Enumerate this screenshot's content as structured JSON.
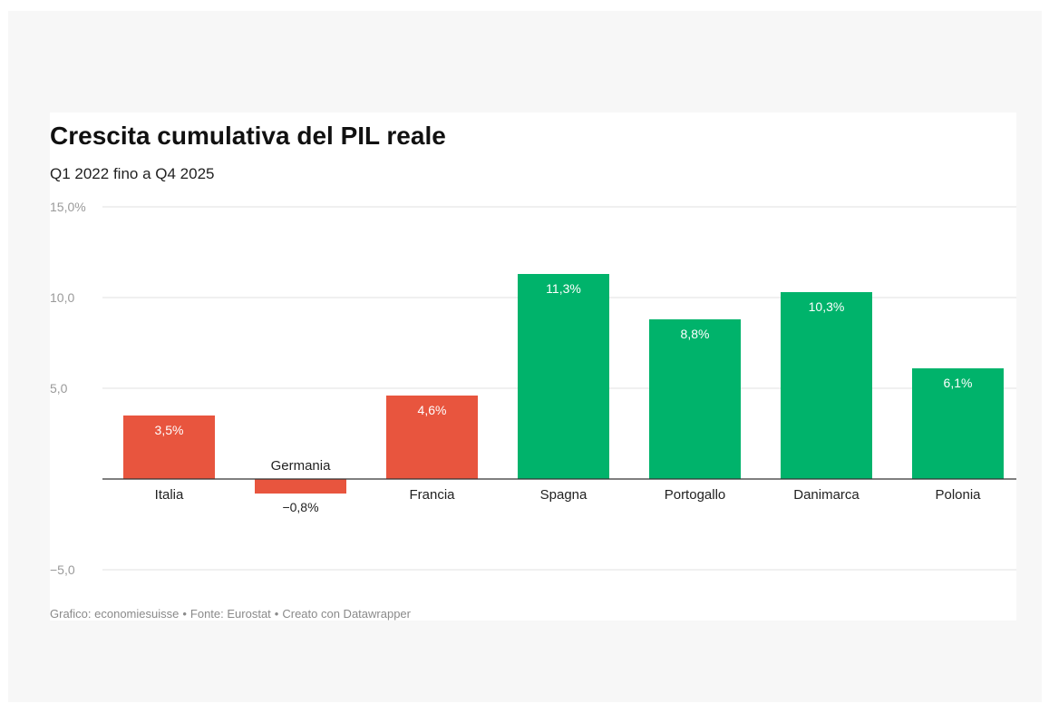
{
  "header": {
    "title": "Crescita cumulativa del PIL reale",
    "subtitle": "Q1 2022 fino a Q4 2025"
  },
  "footer": {
    "credit": "Grafico: economiesuisse",
    "source": "Fonte: Eurostat",
    "tool": "Creato con Datawrapper",
    "separator": "•"
  },
  "colors": {
    "negative_group": "#e8553e",
    "positive_group": "#00b36b",
    "grid": "#e2e2e2",
    "baseline": "#333333",
    "tick_label": "#9a9a9a",
    "label_text": "#222222",
    "bar_label_inside": "#ffffff"
  },
  "chart_data": {
    "type": "bar",
    "title": "Crescita cumulativa del PIL reale",
    "subtitle": "Q1 2022 fino a Q4 2025",
    "categories": [
      "Italia",
      "Germania",
      "Francia",
      "Spagna",
      "Portogallo",
      "Danimarca",
      "Polonia"
    ],
    "values": [
      3.5,
      -0.8,
      4.6,
      11.3,
      8.8,
      10.3,
      6.1
    ],
    "value_labels": [
      "3,5%",
      "−0,8%",
      "4,6%",
      "11,3%",
      "8,8%",
      "10,3%",
      "6,1%"
    ],
    "bar_colors": [
      "#e8553e",
      "#e8553e",
      "#e8553e",
      "#00b36b",
      "#00b36b",
      "#00b36b",
      "#00b36b"
    ],
    "ylim": [
      -5,
      15
    ],
    "yticks": [
      -5,
      0,
      5,
      10,
      15
    ],
    "ytick_labels": [
      "−5,0",
      "",
      "5,0",
      "10,0",
      "15,0%"
    ],
    "grid": true,
    "legend": "none"
  }
}
